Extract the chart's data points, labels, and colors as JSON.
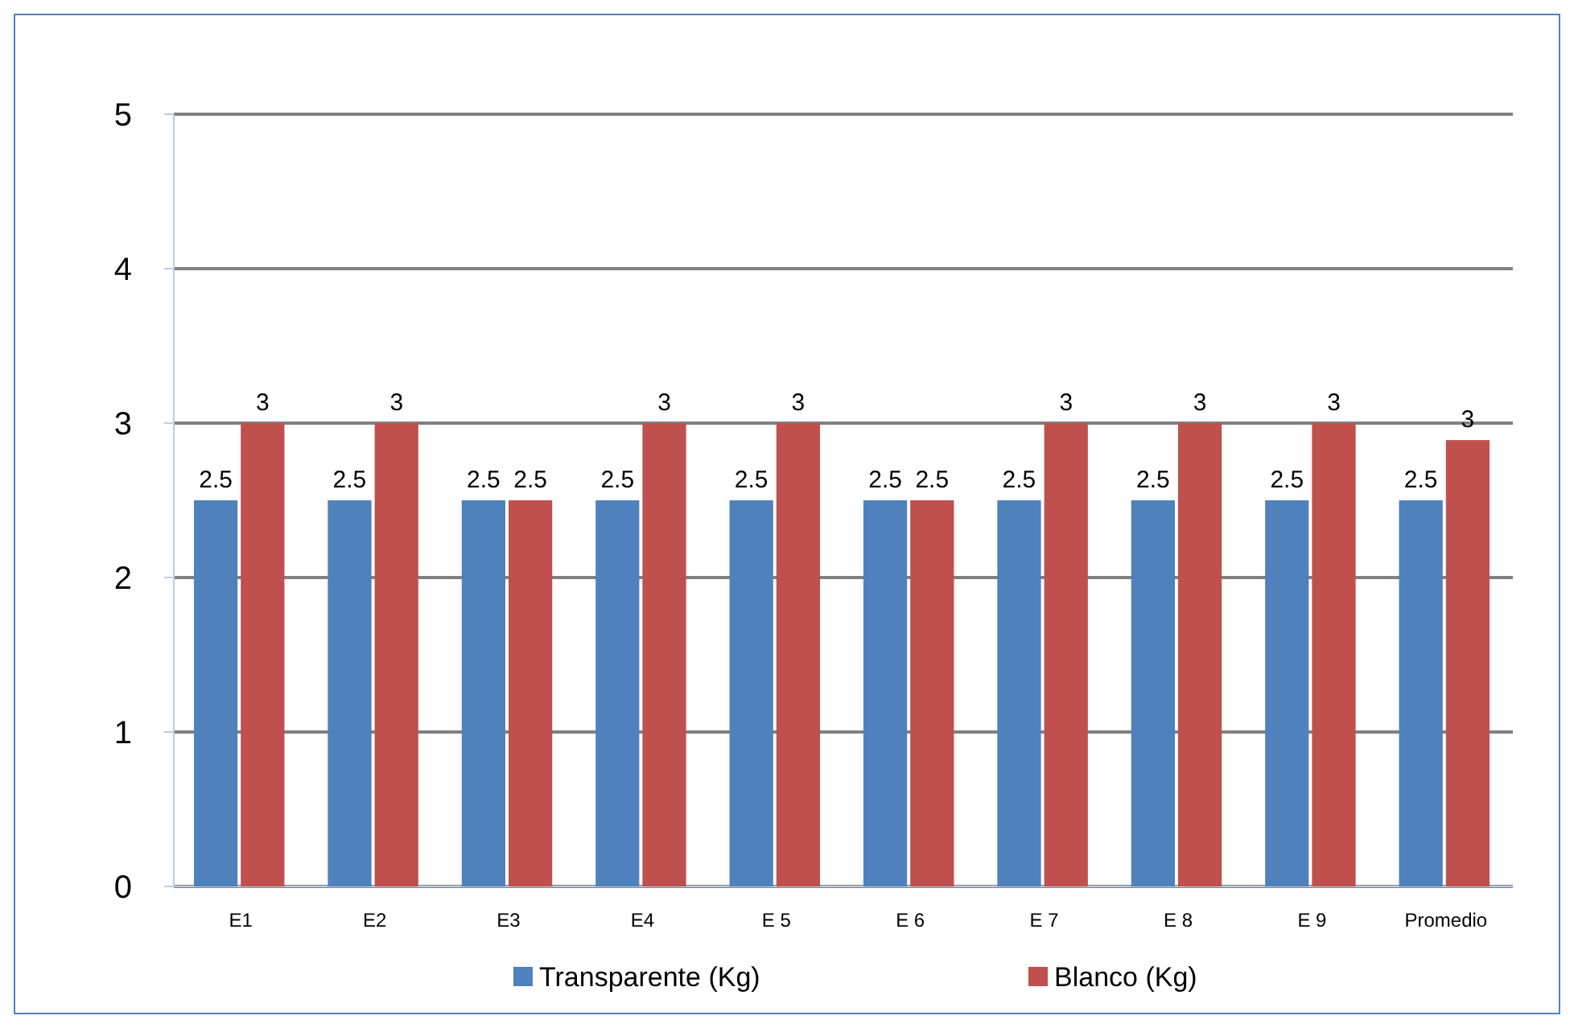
{
  "chart_data": {
    "type": "bar",
    "categories": [
      "E1",
      "E2",
      "E3",
      "E4",
      "E 5",
      "E 6",
      "E 7",
      "E 8",
      "E 9",
      "Promedio"
    ],
    "series": [
      {
        "name": "Transparente (Kg)",
        "color": "#4f81bd",
        "values": [
          2.5,
          2.5,
          2.5,
          2.5,
          2.5,
          2.5,
          2.5,
          2.5,
          2.5,
          2.5
        ],
        "value_labels": [
          "2.5",
          "2.5",
          "2.5",
          "2.5",
          "2.5",
          "2.5",
          "2.5",
          "2.5",
          "2.5",
          "2.5"
        ]
      },
      {
        "name": "Blanco (Kg)",
        "color": "#c0504d",
        "values": [
          3,
          3,
          2.5,
          3,
          3,
          2.5,
          3,
          3,
          3,
          2.89
        ],
        "value_labels": [
          "3",
          "3",
          "2.5",
          "3",
          "3",
          "2.5",
          "3",
          "3",
          "3",
          "3"
        ]
      }
    ],
    "ylim": [
      0,
      5
    ],
    "yticks": [
      0,
      1,
      2,
      3,
      4,
      5
    ],
    "grid": "y",
    "legend": "bottom"
  }
}
